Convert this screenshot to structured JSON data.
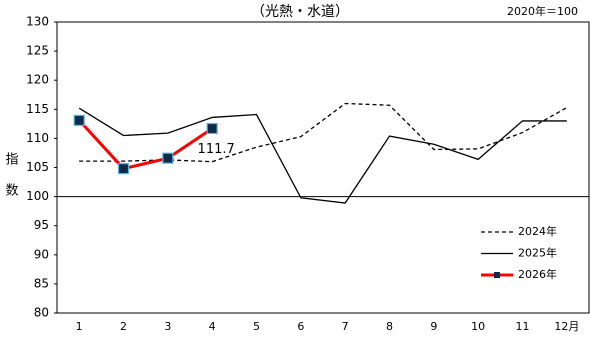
{
  "chart_data": {
    "type": "line",
    "title": "（光熱・水道）",
    "subtitle": "2020年＝100",
    "y_label": "指数",
    "categories": [
      "1",
      "2",
      "3",
      "4",
      "5",
      "6",
      "7",
      "8",
      "9",
      "10",
      "11",
      "12月"
    ],
    "series": [
      {
        "name": "2024年",
        "color": "#000000",
        "dash": true,
        "values": [
          106.1,
          106.1,
          106.3,
          106.0,
          108.5,
          110.3,
          116.0,
          115.7,
          108.1,
          108.2,
          111.0,
          115.3
        ]
      },
      {
        "name": "2025年",
        "color": "#000000",
        "values": [
          115.2,
          110.5,
          110.9,
          113.6,
          114.1,
          99.8,
          98.9,
          110.4,
          109.0,
          106.4,
          113.0,
          113.0
        ]
      },
      {
        "name": "2026年",
        "color": "#ff0000",
        "marker_color": "#0d2a4a",
        "values": [
          113.1,
          104.8,
          106.6,
          111.7,
          null,
          null,
          null,
          null,
          null,
          null,
          null,
          null
        ],
        "value_labels": [
          null,
          null,
          null,
          "111.7",
          null,
          null,
          null,
          null,
          null,
          null,
          null,
          null
        ]
      }
    ],
    "ylim": [
      80,
      130
    ],
    "yticks": [
      80,
      85,
      90,
      95,
      100,
      105,
      110,
      115,
      120,
      125,
      130
    ],
    "reference_line": 100
  }
}
